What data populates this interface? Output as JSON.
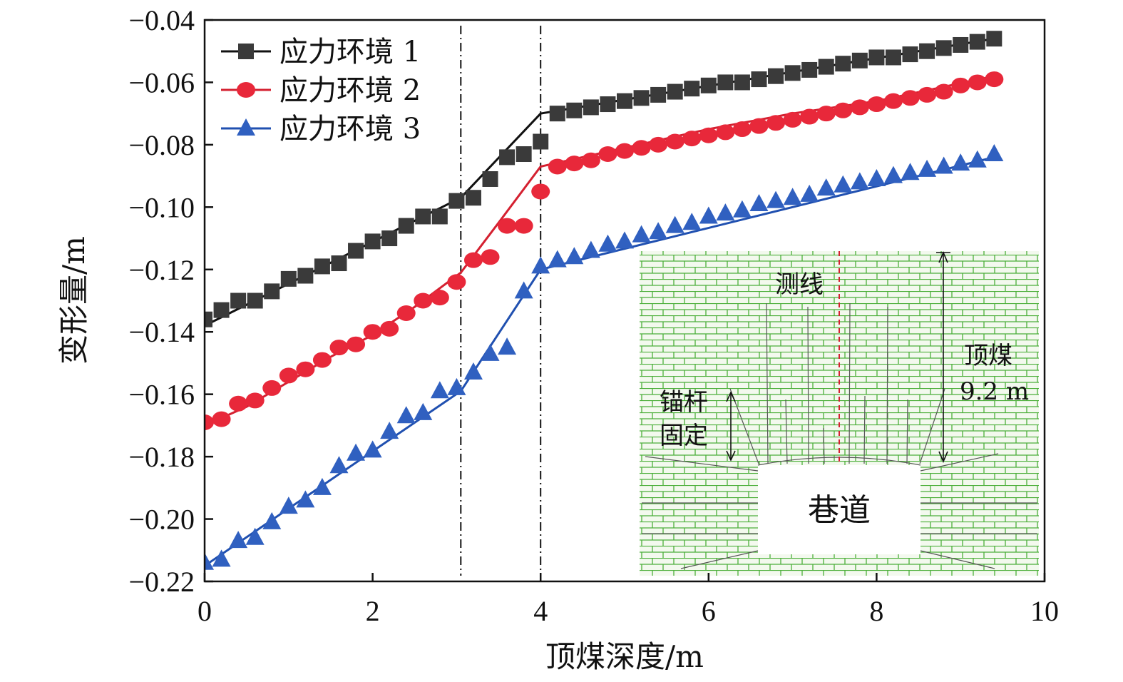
{
  "chart_data": {
    "type": "line",
    "xlabel": "顶煤深度/m",
    "ylabel": "变形量/m",
    "xlim": [
      0,
      10
    ],
    "ylim": [
      -0.22,
      -0.04
    ],
    "xticks": [
      0,
      2,
      4,
      6,
      8,
      10
    ],
    "xtick_labels": [
      "0",
      "2",
      "4",
      "6",
      "8",
      "10"
    ],
    "yticks": [
      -0.04,
      -0.06,
      -0.08,
      -0.1,
      -0.12,
      -0.14,
      -0.16,
      -0.18,
      -0.2,
      -0.22
    ],
    "ytick_labels": [
      "−0.04",
      "−0.06",
      "−0.08",
      "−0.10",
      "−0.12",
      "−0.14",
      "−0.16",
      "−0.18",
      "−0.20",
      "−0.22"
    ],
    "vlines": [
      3.05,
      4.0
    ],
    "legend_position": "top-left",
    "series": [
      {
        "name": "应力环境 1",
        "color": "#3a3a3a",
        "line_color": "#111111",
        "marker": "square",
        "x": [
          0,
          0.2,
          0.4,
          0.6,
          0.8,
          1.0,
          1.2,
          1.4,
          1.6,
          1.8,
          2.0,
          2.2,
          2.4,
          2.6,
          2.8,
          3.0,
          3.2,
          3.4,
          3.6,
          3.8,
          4.0,
          4.2,
          4.4,
          4.6,
          4.8,
          5.0,
          5.2,
          5.4,
          5.6,
          5.8,
          6.0,
          6.2,
          6.4,
          6.6,
          6.8,
          7.0,
          7.2,
          7.4,
          7.6,
          7.8,
          8.0,
          8.2,
          8.4,
          8.6,
          8.8,
          9.0,
          9.2,
          9.4
        ],
        "values": [
          -0.136,
          -0.133,
          -0.13,
          -0.13,
          -0.127,
          -0.123,
          -0.122,
          -0.119,
          -0.118,
          -0.114,
          -0.111,
          -0.11,
          -0.106,
          -0.103,
          -0.103,
          -0.098,
          -0.097,
          -0.091,
          -0.084,
          -0.083,
          -0.079,
          -0.07,
          -0.069,
          -0.068,
          -0.067,
          -0.066,
          -0.065,
          -0.064,
          -0.063,
          -0.062,
          -0.061,
          -0.06,
          -0.06,
          -0.059,
          -0.058,
          -0.057,
          -0.056,
          -0.055,
          -0.054,
          -0.053,
          -0.052,
          -0.052,
          -0.051,
          -0.05,
          -0.049,
          -0.048,
          -0.047,
          -0.046
        ],
        "fit_x": [
          0,
          3.05,
          4.0,
          9.4
        ],
        "fit_y": [
          -0.138,
          -0.097,
          -0.07,
          -0.046
        ]
      },
      {
        "name": "应力环境 2",
        "color": "#e8283a",
        "line_color": "#d42030",
        "marker": "circle",
        "x": [
          0,
          0.2,
          0.4,
          0.6,
          0.8,
          1.0,
          1.2,
          1.4,
          1.6,
          1.8,
          2.0,
          2.2,
          2.4,
          2.6,
          2.8,
          3.0,
          3.2,
          3.4,
          3.6,
          3.8,
          4.0,
          4.2,
          4.4,
          4.6,
          4.8,
          5.0,
          5.2,
          5.4,
          5.6,
          5.8,
          6.0,
          6.2,
          6.4,
          6.6,
          6.8,
          7.0,
          7.2,
          7.4,
          7.6,
          7.8,
          8.0,
          8.2,
          8.4,
          8.6,
          8.8,
          9.0,
          9.2,
          9.4
        ],
        "values": [
          -0.169,
          -0.168,
          -0.163,
          -0.162,
          -0.158,
          -0.154,
          -0.152,
          -0.149,
          -0.145,
          -0.144,
          -0.14,
          -0.139,
          -0.134,
          -0.13,
          -0.129,
          -0.124,
          -0.117,
          -0.116,
          -0.106,
          -0.106,
          -0.095,
          -0.087,
          -0.086,
          -0.085,
          -0.083,
          -0.082,
          -0.081,
          -0.08,
          -0.079,
          -0.078,
          -0.077,
          -0.076,
          -0.075,
          -0.074,
          -0.073,
          -0.072,
          -0.071,
          -0.07,
          -0.069,
          -0.068,
          -0.067,
          -0.066,
          -0.065,
          -0.064,
          -0.063,
          -0.061,
          -0.06,
          -0.059
        ],
        "fit_x": [
          0,
          0.5,
          1.0,
          1.5,
          2.0,
          2.5,
          3.05,
          3.5,
          4.0,
          5.0,
          6.0,
          7.0,
          8.0,
          9.4
        ],
        "fit_y": [
          -0.17,
          -0.164,
          -0.156,
          -0.148,
          -0.141,
          -0.132,
          -0.121,
          -0.105,
          -0.087,
          -0.081,
          -0.075,
          -0.07,
          -0.066,
          -0.058
        ]
      },
      {
        "name": "应力环境 3",
        "color": "#3060c0",
        "line_color": "#2050b0",
        "marker": "triangle",
        "x": [
          0,
          0.2,
          0.4,
          0.6,
          0.8,
          1.0,
          1.2,
          1.4,
          1.6,
          1.8,
          2.0,
          2.2,
          2.4,
          2.6,
          2.8,
          3.0,
          3.2,
          3.4,
          3.6,
          3.8,
          4.0,
          4.2,
          4.4,
          4.6,
          4.8,
          5.0,
          5.2,
          5.4,
          5.6,
          5.8,
          6.0,
          6.2,
          6.4,
          6.6,
          6.8,
          7.0,
          7.2,
          7.4,
          7.6,
          7.8,
          8.0,
          8.2,
          8.4,
          8.6,
          8.8,
          9.0,
          9.2,
          9.4
        ],
        "values": [
          -0.214,
          -0.213,
          -0.207,
          -0.206,
          -0.201,
          -0.196,
          -0.194,
          -0.19,
          -0.183,
          -0.179,
          -0.178,
          -0.172,
          -0.167,
          -0.166,
          -0.159,
          -0.158,
          -0.153,
          -0.147,
          -0.145,
          -0.127,
          -0.119,
          -0.117,
          -0.116,
          -0.114,
          -0.112,
          -0.111,
          -0.109,
          -0.108,
          -0.106,
          -0.105,
          -0.103,
          -0.102,
          -0.101,
          -0.099,
          -0.098,
          -0.097,
          -0.096,
          -0.094,
          -0.093,
          -0.092,
          -0.091,
          -0.09,
          -0.089,
          -0.088,
          -0.087,
          -0.086,
          -0.085,
          -0.083
        ],
        "fit_x": [
          0,
          3.05,
          4.0,
          9.4
        ],
        "fit_y": [
          -0.215,
          -0.159,
          -0.12,
          -0.084
        ]
      }
    ],
    "inset": {
      "labels": {
        "line": "测线",
        "roadway": "巷道",
        "bolt": [
          "锚杆",
          "固定"
        ],
        "top_coal": [
          "顶煤",
          "9.2 m"
        ]
      }
    }
  }
}
